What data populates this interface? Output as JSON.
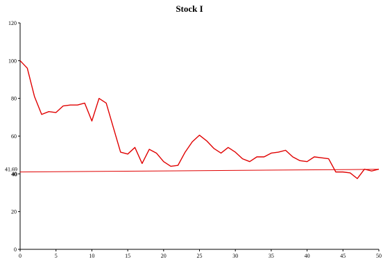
{
  "chart_data": {
    "type": "line",
    "title": "Stock I",
    "xlabel": "",
    "ylabel": "",
    "xlim": [
      0,
      50
    ],
    "ylim": [
      0,
      120
    ],
    "x_ticks": [
      0,
      5,
      10,
      15,
      20,
      25,
      30,
      35,
      40,
      45,
      50
    ],
    "y_ticks": [
      0,
      20,
      40,
      60,
      80,
      100,
      120
    ],
    "grid": false,
    "legend": "none",
    "series": [
      {
        "color": "#e00000",
        "x": [
          0,
          1,
          2,
          3,
          4,
          5,
          6,
          7,
          8,
          9,
          10,
          11,
          12,
          13,
          14,
          15,
          16,
          17,
          18,
          19,
          20,
          21,
          22,
          23,
          24,
          25,
          26,
          27,
          28,
          29,
          30,
          31,
          32,
          33,
          34,
          35,
          36,
          37,
          38,
          39,
          40,
          41,
          42,
          43,
          44,
          45,
          46,
          47,
          48,
          49,
          50
        ],
        "values": [
          100,
          96,
          81,
          71.5,
          73,
          72.5,
          76,
          76.5,
          76.5,
          77.5,
          68,
          80,
          77.5,
          64.5,
          51.5,
          50.5,
          54,
          45.5,
          53,
          51,
          46.5,
          44,
          44.5,
          51.5,
          57,
          60.5,
          57.5,
          53.5,
          51,
          54,
          51.5,
          48,
          46.5,
          49,
          49,
          51,
          51.5,
          52.5,
          49,
          47,
          46.5,
          49,
          48.5,
          48,
          41,
          41,
          40.5,
          37.5,
          42.5,
          41.5,
          42.5
        ]
      },
      {
        "color": "#e00000",
        "x": [
          0,
          50
        ],
        "values": [
          41.0,
          42.4
        ]
      }
    ],
    "annotations": [
      "41.69",
      "40"
    ]
  }
}
